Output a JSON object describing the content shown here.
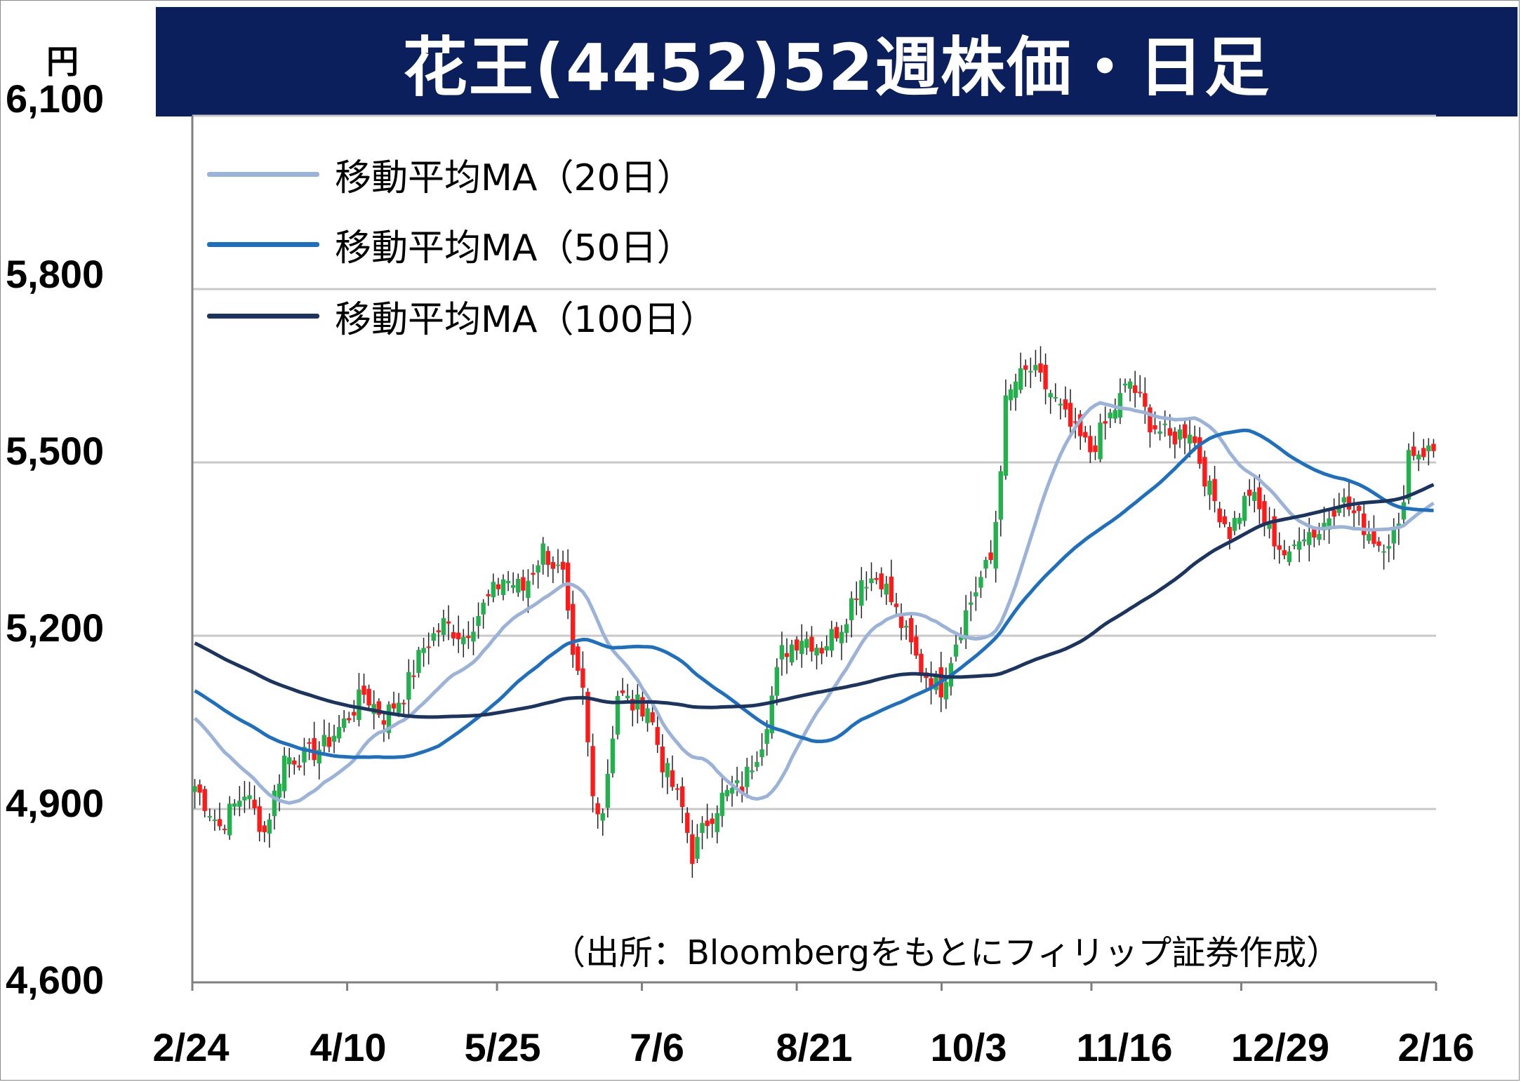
{
  "title": "花王(4452)52週株価・日足",
  "unit_label": "円",
  "source_note": "（出所：Bloombergをもとにフィリップ証券作成）",
  "legend": [
    {
      "label": "移動平均MA（20日）",
      "color": "#9bb3d8"
    },
    {
      "label": "移動平均MA（50日）",
      "color": "#1f6fbf"
    },
    {
      "label": "移動平均MA（100日）",
      "color": "#1b3560"
    }
  ],
  "colors": {
    "up": "#22b14c",
    "down": "#ff1a1a",
    "grid": "#c8c8c8",
    "title_bg": "#0b1f5c"
  },
  "chart_data": {
    "type": "candlestick",
    "ylim": [
      4600,
      6100
    ],
    "yticks": [
      "6,100",
      "5,800",
      "5,500",
      "5,200",
      "4,900",
      "4,600"
    ],
    "ytick_values": [
      6100,
      5800,
      5500,
      5200,
      4900,
      4600
    ],
    "xticks": [
      "2/24",
      "4/10",
      "5/25",
      "7/6",
      "8/21",
      "10/3",
      "11/16",
      "12/29",
      "2/16"
    ],
    "x_range_trading_days": 250,
    "anchors": [
      [
        0,
        4940
      ],
      [
        5,
        4870
      ],
      [
        10,
        4930
      ],
      [
        14,
        4860
      ],
      [
        18,
        4990
      ],
      [
        22,
        4990
      ],
      [
        26,
        5010
      ],
      [
        30,
        5050
      ],
      [
        34,
        5100
      ],
      [
        38,
        5060
      ],
      [
        42,
        5100
      ],
      [
        46,
        5180
      ],
      [
        50,
        5220
      ],
      [
        54,
        5200
      ],
      [
        58,
        5250
      ],
      [
        62,
        5300
      ],
      [
        66,
        5280
      ],
      [
        70,
        5350
      ],
      [
        74,
        5300
      ],
      [
        76,
        5150
      ],
      [
        78,
        5100
      ],
      [
        80,
        4920
      ],
      [
        82,
        4900
      ],
      [
        85,
        5100
      ],
      [
        88,
        5080
      ],
      [
        91,
        5080
      ],
      [
        94,
        4980
      ],
      [
        96,
        4940
      ],
      [
        98,
        4900
      ],
      [
        100,
        4820
      ],
      [
        103,
        4880
      ],
      [
        106,
        4920
      ],
      [
        110,
        4940
      ],
      [
        114,
        5020
      ],
      [
        118,
        5170
      ],
      [
        122,
        5200
      ],
      [
        126,
        5180
      ],
      [
        130,
        5220
      ],
      [
        134,
        5300
      ],
      [
        138,
        5300
      ],
      [
        142,
        5220
      ],
      [
        146,
        5140
      ],
      [
        150,
        5110
      ],
      [
        154,
        5220
      ],
      [
        158,
        5300
      ],
      [
        160,
        5330
      ],
      [
        161,
        5400
      ],
      [
        163,
        5600
      ],
      [
        165,
        5640
      ],
      [
        168,
        5660
      ],
      [
        172,
        5620
      ],
      [
        176,
        5560
      ],
      [
        180,
        5520
      ],
      [
        184,
        5580
      ],
      [
        188,
        5640
      ],
      [
        192,
        5570
      ],
      [
        196,
        5540
      ],
      [
        200,
        5560
      ],
      [
        204,
        5450
      ],
      [
        208,
        5380
      ],
      [
        212,
        5450
      ],
      [
        216,
        5380
      ],
      [
        220,
        5330
      ],
      [
        222,
        5380
      ],
      [
        226,
        5380
      ],
      [
        230,
        5440
      ],
      [
        234,
        5400
      ],
      [
        238,
        5360
      ],
      [
        242,
        5380
      ],
      [
        244,
        5520
      ]
    ],
    "moving_averages": [
      {
        "name": "移動平均MA（20日）",
        "period": 20
      },
      {
        "name": "移動平均MA（50日）",
        "period": 50
      },
      {
        "name": "移動平均MA（100日）",
        "period": 100
      }
    ]
  }
}
